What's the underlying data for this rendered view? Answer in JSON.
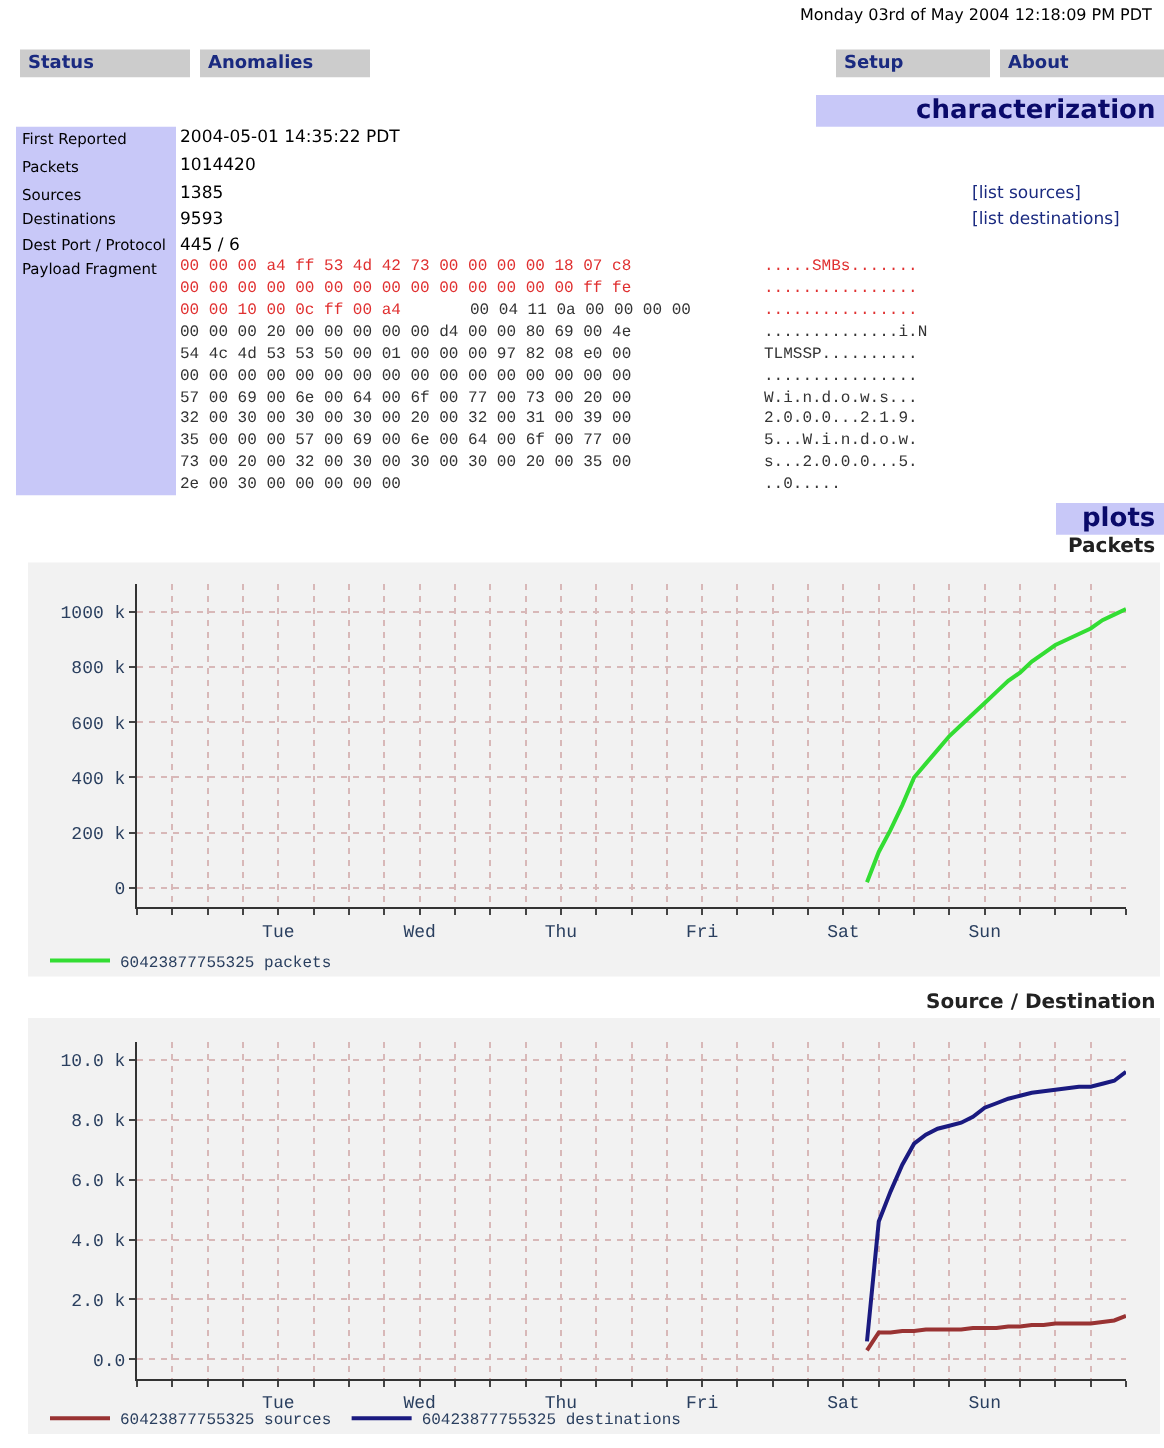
{
  "chart_data": [
    {
      "type": "other",
      "title": "characterization",
      "annotations": [
        "Monday 03rd of May 2004 12:18:09 PM PDT",
        "Status",
        "Anomalies",
        "Setup",
        "About",
        "First Reported",
        "2004-05-01 14:35:22 PDT",
        "Packets",
        "1014420",
        "Sources",
        "1385",
        "Destinations",
        "9593",
        "Dest Port / Protocol",
        "445 / 6",
        "Payload Fragment",
        "00 00 00 a4 ff 53 4d 42 73 00 00 00 00 18 07 c8",
        "00 00 00 00 00 00 00 00 00 00 00 00 00 00 ff fe",
        "00 00 10 00 0c ff 00 a4",
        "00 04 11 0a 00 00 00 00",
        "00 00 00 20 00 00 00 00 00 d4 00 00 80 69 00 4e",
        "54 4c 4d 53 53 50 00 01 00 00 00 97 82 08 e0 00",
        "00 00 00 00 00 00 00 00 00 00 00 00 00 00 00 00",
        "57 00 69 00 6e 00 64 00 6f 00 77 00 73 00 20 00",
        "32 00 30 00 30 00 30 00 20 00 32 00 31 00 39 00",
        "35 00 00 00 57 00 69 00 6e 00 64 00 6f 00 77 00",
        "73 00 20 00 32 00 30 00 30 00 30 00 20 00 35 00",
        "2e 00 30 00 00 00 00 00",
        ".....SMBs.......",
        "................",
        "................",
        "..............i.N",
        "TLMSSP..........",
        "................",
        "W.i.n.d.o.w.s...",
        "2.0.0.0...2.1.9.",
        "5...W.i.n.d.o.w.",
        "s...2.0.0.0...5.",
        "..0.....",
        "[list sources]",
        "[list destinations]",
        "plots"
      ]
    },
    {
      "type": "line",
      "title": "Packets",
      "legend": "bottom",
      "grid": true,
      "categories": [
        null,
        null,
        null,
        null,
        null,
        null,
        null,
        null,
        null,
        null,
        null,
        null,
        "Tue",
        null,
        null,
        null,
        null,
        null,
        null,
        null,
        null,
        null,
        null,
        null,
        "Wed",
        null,
        null,
        null,
        null,
        null,
        null,
        null,
        null,
        null,
        null,
        null,
        "Thu",
        null,
        null,
        null,
        null,
        null,
        null,
        null,
        null,
        null,
        null,
        null,
        "Fri",
        null,
        null,
        null,
        null,
        null,
        null,
        null,
        null,
        null,
        null,
        null,
        "Sat",
        null,
        null,
        null,
        null,
        null,
        null,
        null,
        null,
        null,
        null,
        null,
        "Sun",
        null,
        null,
        null,
        null,
        null,
        null,
        null,
        null,
        null,
        null,
        null,
        null
      ],
      "ylim": [
        -70000,
        1100000
      ],
      "yticks": [
        0,
        {
          "value": 200000,
          "label": "200 k"
        },
        {
          "value": 400000,
          "label": "400 k"
        },
        {
          "value": 600000,
          "label": "600 k"
        },
        {
          "value": 800000,
          "label": "800 k"
        },
        {
          "value": 1000000,
          "label": "1000 k"
        }
      ],
      "series": [
        {
          "name": "60423877755325 packets",
          "color": "#33dd33",
          "values": [
            null,
            null,
            null,
            null,
            null,
            null,
            null,
            null,
            null,
            null,
            null,
            null,
            null,
            null,
            null,
            null,
            null,
            null,
            null,
            null,
            null,
            null,
            null,
            null,
            null,
            null,
            null,
            null,
            null,
            null,
            null,
            null,
            null,
            null,
            null,
            null,
            null,
            null,
            null,
            null,
            null,
            null,
            null,
            null,
            null,
            null,
            null,
            null,
            null,
            null,
            null,
            null,
            null,
            null,
            null,
            null,
            null,
            null,
            null,
            null,
            null,
            null,
            20000,
            130000,
            210000,
            300000,
            400000,
            450000,
            500000,
            550000,
            590000,
            630000,
            670000,
            710000,
            750000,
            780000,
            820000,
            850000,
            880000,
            900000,
            920000,
            940000,
            970000,
            990000,
            1010000
          ]
        }
      ]
    },
    {
      "type": "line",
      "title": "Source / Destination",
      "legend": "bottom",
      "grid": true,
      "categories": [
        null,
        null,
        null,
        null,
        null,
        null,
        null,
        null,
        null,
        null,
        null,
        null,
        "Tue",
        null,
        null,
        null,
        null,
        null,
        null,
        null,
        null,
        null,
        null,
        null,
        "Wed",
        null,
        null,
        null,
        null,
        null,
        null,
        null,
        null,
        null,
        null,
        null,
        "Thu",
        null,
        null,
        null,
        null,
        null,
        null,
        null,
        null,
        null,
        null,
        null,
        "Fri",
        null,
        null,
        null,
        null,
        null,
        null,
        null,
        null,
        null,
        null,
        null,
        "Sat",
        null,
        null,
        null,
        null,
        null,
        null,
        null,
        null,
        null,
        null,
        null,
        "Sun",
        null,
        null,
        null,
        null,
        null,
        null,
        null,
        null,
        null,
        null,
        null,
        null
      ],
      "ylim": [
        -640,
        10600
      ],
      "yticks": [
        {
          "value": 0,
          "label": "0.0"
        },
        {
          "value": 2000,
          "label": "2.0 k"
        },
        {
          "value": 4000,
          "label": "4.0 k"
        },
        {
          "value": 6000,
          "label": "6.0 k"
        },
        {
          "value": 8000,
          "label": "8.0 k"
        },
        {
          "value": 10000,
          "label": "10.0 k"
        }
      ],
      "series": [
        {
          "name": "60423877755325 sources",
          "color": "#993333",
          "values": [
            null,
            null,
            null,
            null,
            null,
            null,
            null,
            null,
            null,
            null,
            null,
            null,
            null,
            null,
            null,
            null,
            null,
            null,
            null,
            null,
            null,
            null,
            null,
            null,
            null,
            null,
            null,
            null,
            null,
            null,
            null,
            null,
            null,
            null,
            null,
            null,
            null,
            null,
            null,
            null,
            null,
            null,
            null,
            null,
            null,
            null,
            null,
            null,
            null,
            null,
            null,
            null,
            null,
            null,
            null,
            null,
            null,
            null,
            null,
            null,
            null,
            null,
            300,
            900,
            900,
            950,
            950,
            1000,
            1000,
            1000,
            1000,
            1050,
            1050,
            1050,
            1100,
            1100,
            1150,
            1150,
            1200,
            1200,
            1200,
            1200,
            1250,
            1300,
            1450
          ]
        },
        {
          "name": "60423877755325 destinations",
          "color": "#1a1a80",
          "values": [
            null,
            null,
            null,
            null,
            null,
            null,
            null,
            null,
            null,
            null,
            null,
            null,
            null,
            null,
            null,
            null,
            null,
            null,
            null,
            null,
            null,
            null,
            null,
            null,
            null,
            null,
            null,
            null,
            null,
            null,
            null,
            null,
            null,
            null,
            null,
            null,
            null,
            null,
            null,
            null,
            null,
            null,
            null,
            null,
            null,
            null,
            null,
            null,
            null,
            null,
            null,
            null,
            null,
            null,
            null,
            null,
            null,
            null,
            null,
            null,
            null,
            null,
            600,
            4600,
            5600,
            6500,
            7200,
            7500,
            7700,
            7800,
            7900,
            8100,
            8400,
            8550,
            8700,
            8800,
            8900,
            8950,
            9000,
            9050,
            9100,
            9100,
            9200,
            9300,
            9600
          ]
        }
      ]
    }
  ]
}
